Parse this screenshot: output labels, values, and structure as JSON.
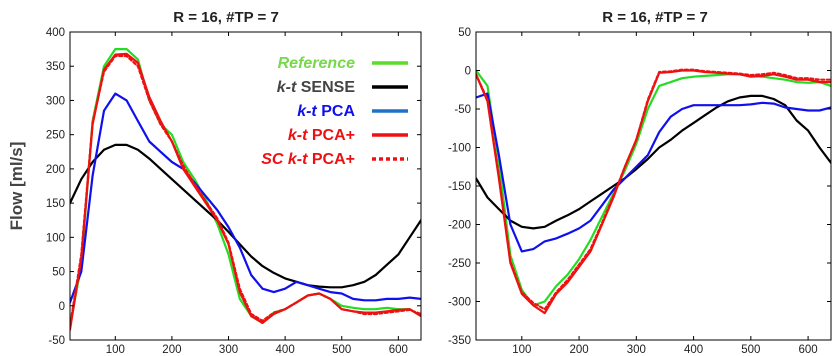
{
  "figure": {
    "ylabel": "Flow [ml/s]"
  },
  "legend": [
    {
      "segments": [
        {
          "text": "Reference",
          "italic": true
        }
      ],
      "color": "#5ddc2a",
      "text_color": "#76d84a",
      "dash": false
    },
    {
      "segments": [
        {
          "text": "k-t",
          "italic": true
        },
        {
          "text": " SENSE",
          "italic": false
        }
      ],
      "color": "#000000",
      "text_color": "#444444",
      "dash": false
    },
    {
      "segments": [
        {
          "text": "k-t",
          "italic": true
        },
        {
          "text": " PCA",
          "italic": false
        }
      ],
      "color": "#1e73c8",
      "text_color": "#1010ee",
      "dash": false
    },
    {
      "segments": [
        {
          "text": "k-t",
          "italic": true
        },
        {
          "text": " PCA+",
          "italic": false
        }
      ],
      "color": "#ee1111",
      "text_color": "#ee1111",
      "dash": false
    },
    {
      "segments": [
        {
          "text": "SC k-t",
          "italic": true
        },
        {
          "text": " PCA+",
          "italic": false
        }
      ],
      "color": "#ee1111",
      "text_color": "#ee1111",
      "dash": true
    }
  ],
  "chart_data": [
    {
      "type": "line",
      "title": "R = 16, #TP = 7",
      "xlabel": "",
      "ylabel": "Flow [ml/s]",
      "xlim": [
        20,
        640
      ],
      "ylim": [
        -50,
        400
      ],
      "xticks": [
        100,
        200,
        300,
        400,
        500,
        600
      ],
      "yticks": [
        -50,
        0,
        50,
        100,
        150,
        200,
        250,
        300,
        350,
        400
      ],
      "legend_position": "top-right",
      "series": [
        {
          "name": "Reference",
          "color": "#22dd22",
          "dash": false,
          "x": [
            20,
            40,
            60,
            80,
            100,
            120,
            140,
            160,
            180,
            200,
            220,
            240,
            260,
            280,
            300,
            320,
            340,
            360,
            380,
            400,
            420,
            440,
            460,
            480,
            500,
            520,
            540,
            560,
            580,
            600,
            620,
            640
          ],
          "y": [
            -30,
            60,
            270,
            350,
            375,
            375,
            360,
            300,
            265,
            250,
            210,
            185,
            155,
            120,
            75,
            10,
            -15,
            -25,
            -10,
            -5,
            5,
            15,
            18,
            10,
            0,
            -3,
            -5,
            -5,
            -3,
            -5,
            -5,
            -15
          ]
        },
        {
          "name": "k-t SENSE",
          "color": "#000000",
          "dash": false,
          "x": [
            20,
            40,
            60,
            80,
            100,
            120,
            140,
            160,
            180,
            200,
            220,
            240,
            260,
            280,
            300,
            320,
            340,
            360,
            380,
            400,
            420,
            440,
            460,
            480,
            500,
            520,
            540,
            560,
            580,
            600,
            620,
            640
          ],
          "y": [
            150,
            185,
            210,
            228,
            235,
            235,
            228,
            215,
            200,
            185,
            170,
            155,
            140,
            125,
            108,
            90,
            72,
            58,
            48,
            40,
            35,
            30,
            28,
            27,
            27,
            30,
            35,
            45,
            60,
            75,
            100,
            125
          ]
        },
        {
          "name": "k-t PCA",
          "color": "#1010ee",
          "dash": false,
          "x": [
            20,
            40,
            60,
            80,
            100,
            120,
            140,
            160,
            180,
            200,
            220,
            240,
            260,
            280,
            300,
            320,
            340,
            360,
            380,
            400,
            420,
            440,
            460,
            480,
            500,
            520,
            540,
            560,
            580,
            600,
            620,
            640
          ],
          "y": [
            5,
            50,
            190,
            285,
            310,
            300,
            270,
            240,
            225,
            210,
            200,
            180,
            160,
            140,
            115,
            85,
            45,
            25,
            20,
            25,
            35,
            30,
            25,
            20,
            18,
            10,
            8,
            8,
            10,
            10,
            12,
            10
          ]
        },
        {
          "name": "k-t PCA+",
          "color": "#ee1111",
          "dash": false,
          "x": [
            20,
            40,
            60,
            80,
            100,
            120,
            140,
            160,
            180,
            200,
            220,
            240,
            260,
            280,
            300,
            320,
            340,
            360,
            380,
            400,
            420,
            440,
            460,
            480,
            500,
            520,
            540,
            560,
            580,
            600,
            620,
            640
          ],
          "y": [
            -35,
            70,
            265,
            345,
            367,
            368,
            355,
            305,
            270,
            240,
            200,
            175,
            150,
            125,
            90,
            20,
            -15,
            -25,
            -12,
            -5,
            5,
            15,
            18,
            10,
            -5,
            -8,
            -10,
            -10,
            -8,
            -6,
            -5,
            -15
          ]
        },
        {
          "name": "SC k-t PCA+",
          "color": "#ee1111",
          "dash": true,
          "x": [
            20,
            40,
            60,
            80,
            100,
            120,
            140,
            160,
            180,
            200,
            220,
            240,
            260,
            280,
            300,
            320,
            340,
            360,
            380,
            400,
            420,
            440,
            460,
            480,
            500,
            520,
            540,
            560,
            580,
            600,
            620,
            640
          ],
          "y": [
            -30,
            75,
            268,
            342,
            365,
            365,
            350,
            300,
            265,
            240,
            205,
            178,
            152,
            128,
            92,
            25,
            -12,
            -22,
            -10,
            -5,
            5,
            15,
            18,
            10,
            -5,
            -8,
            -12,
            -12,
            -10,
            -8,
            -6,
            -12
          ]
        }
      ]
    },
    {
      "type": "line",
      "title": "R = 16, #TP = 7",
      "xlabel": "",
      "ylabel": "",
      "xlim": [
        20,
        640
      ],
      "ylim": [
        -350,
        50
      ],
      "xticks": [
        100,
        200,
        300,
        400,
        500,
        600
      ],
      "yticks": [
        -350,
        -300,
        -250,
        -200,
        -150,
        -100,
        -50,
        0,
        50
      ],
      "series": [
        {
          "name": "Reference",
          "color": "#22dd22",
          "dash": false,
          "x": [
            20,
            40,
            60,
            80,
            100,
            120,
            140,
            160,
            180,
            200,
            220,
            240,
            260,
            280,
            300,
            320,
            340,
            360,
            380,
            400,
            420,
            440,
            460,
            480,
            500,
            520,
            540,
            560,
            580,
            600,
            620,
            640
          ],
          "y": [
            0,
            -20,
            -120,
            -240,
            -285,
            -305,
            -300,
            -280,
            -265,
            -245,
            -220,
            -190,
            -160,
            -130,
            -95,
            -50,
            -20,
            -15,
            -10,
            -8,
            -7,
            -6,
            -5,
            -5,
            -7,
            -8,
            -10,
            -12,
            -15,
            -16,
            -15,
            -20
          ]
        },
        {
          "name": "k-t SENSE",
          "color": "#000000",
          "dash": false,
          "x": [
            20,
            40,
            60,
            80,
            100,
            120,
            140,
            160,
            180,
            200,
            220,
            240,
            260,
            280,
            300,
            320,
            340,
            360,
            380,
            400,
            420,
            440,
            460,
            480,
            500,
            520,
            540,
            560,
            580,
            600,
            620,
            640
          ],
          "y": [
            -140,
            -165,
            -180,
            -195,
            -203,
            -205,
            -203,
            -195,
            -188,
            -180,
            -170,
            -160,
            -150,
            -140,
            -128,
            -115,
            -100,
            -90,
            -78,
            -68,
            -58,
            -48,
            -40,
            -35,
            -33,
            -33,
            -37,
            -45,
            -65,
            -78,
            -100,
            -120
          ]
        },
        {
          "name": "k-t PCA",
          "color": "#1010ee",
          "dash": false,
          "x": [
            20,
            40,
            60,
            80,
            100,
            120,
            140,
            160,
            180,
            200,
            220,
            240,
            260,
            280,
            300,
            320,
            340,
            360,
            380,
            400,
            420,
            440,
            460,
            480,
            500,
            520,
            540,
            560,
            580,
            600,
            620,
            640
          ],
          "y": [
            -35,
            -30,
            -110,
            -200,
            -235,
            -232,
            -222,
            -218,
            -212,
            -205,
            -195,
            -175,
            -155,
            -140,
            -125,
            -110,
            -80,
            -60,
            -50,
            -45,
            -45,
            -45,
            -45,
            -45,
            -44,
            -42,
            -43,
            -48,
            -50,
            -52,
            -52,
            -48
          ]
        },
        {
          "name": "k-t PCA+",
          "color": "#ee1111",
          "dash": false,
          "x": [
            20,
            40,
            60,
            80,
            100,
            120,
            140,
            160,
            180,
            200,
            220,
            240,
            260,
            280,
            300,
            320,
            340,
            360,
            380,
            400,
            420,
            440,
            460,
            480,
            500,
            520,
            540,
            560,
            580,
            600,
            620,
            640
          ],
          "y": [
            -5,
            -40,
            -140,
            -250,
            -290,
            -305,
            -315,
            -290,
            -275,
            -255,
            -235,
            -200,
            -165,
            -125,
            -90,
            -40,
            -3,
            -2,
            0,
            0,
            -2,
            -3,
            -4,
            -5,
            -8,
            -7,
            -5,
            -8,
            -12,
            -12,
            -15,
            -15
          ]
        },
        {
          "name": "SC k-t PCA+",
          "color": "#ee1111",
          "dash": true,
          "x": [
            20,
            40,
            60,
            80,
            100,
            120,
            140,
            160,
            180,
            200,
            220,
            240,
            260,
            280,
            300,
            320,
            340,
            360,
            380,
            400,
            420,
            440,
            460,
            480,
            500,
            520,
            540,
            560,
            580,
            600,
            620,
            640
          ],
          "y": [
            -5,
            -38,
            -138,
            -248,
            -288,
            -302,
            -310,
            -288,
            -272,
            -252,
            -232,
            -198,
            -163,
            -125,
            -90,
            -38,
            -2,
            -1,
            1,
            1,
            -1,
            -2,
            -3,
            -4,
            -6,
            -5,
            -3,
            -6,
            -10,
            -10,
            -12,
            -12
          ]
        }
      ]
    }
  ]
}
